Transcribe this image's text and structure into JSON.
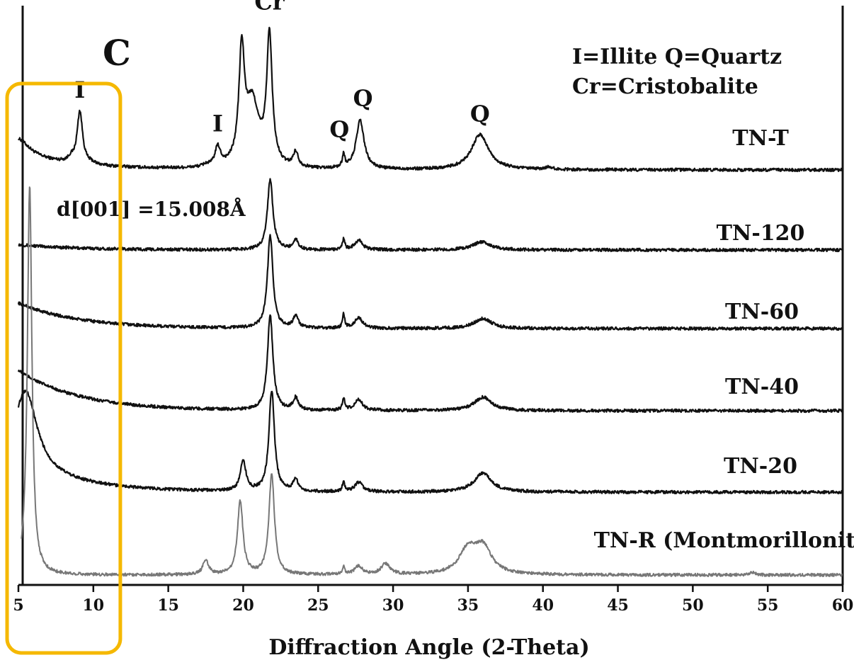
{
  "chart_data": {
    "type": "line",
    "panel_letter": "C",
    "xlabel": "Diffraction Angle (2-Theta)",
    "ylabel": "",
    "xlim": [
      5,
      60
    ],
    "xticks": [
      5,
      10,
      15,
      20,
      25,
      30,
      35,
      40,
      45,
      50,
      55,
      60
    ],
    "grid": false,
    "legend": {
      "line1": "I=Illite Q=Quartz",
      "line2": "Cr=Cristobalite"
    },
    "series": [
      {
        "name": "TN-T",
        "color": "#111111",
        "peaks": [
          [
            5.0,
            0.24
          ],
          [
            8.5,
            0.06
          ],
          [
            9.1,
            0.78
          ],
          [
            9.9,
            0.02
          ],
          [
            17.5,
            0.03
          ],
          [
            18.3,
            0.28
          ],
          [
            19.9,
            1.6
          ],
          [
            20.6,
            0.95
          ],
          [
            21.75,
            1.9
          ],
          [
            23.5,
            0.22
          ],
          [
            26.7,
            0.2
          ],
          [
            27.8,
            0.72
          ],
          [
            35.8,
            0.52
          ],
          [
            40.4,
            0.04
          ]
        ],
        "baseline_start": 0.22
      },
      {
        "name": "TN-120",
        "color": "#111111",
        "peaks": [
          [
            21.8,
            1.05
          ],
          [
            23.5,
            0.15
          ],
          [
            26.7,
            0.16
          ],
          [
            27.7,
            0.14
          ],
          [
            35.9,
            0.12
          ]
        ],
        "baseline_start": 0.08
      },
      {
        "name": "TN-60",
        "color": "#111111",
        "peaks": [
          [
            21.8,
            1.38
          ],
          [
            23.5,
            0.18
          ],
          [
            26.7,
            0.2
          ],
          [
            27.7,
            0.16
          ],
          [
            36.0,
            0.15
          ]
        ],
        "baseline_start": 0.38
      },
      {
        "name": "TN-40",
        "color": "#111111",
        "peaks": [
          [
            21.8,
            1.4
          ],
          [
            23.5,
            0.18
          ],
          [
            26.7,
            0.18
          ],
          [
            27.7,
            0.16
          ],
          [
            36.0,
            0.2
          ]
        ],
        "baseline_start": 0.6
      },
      {
        "name": "TN-20",
        "color": "#111111",
        "peaks": [
          [
            5.5,
            1.15
          ],
          [
            20.0,
            0.45
          ],
          [
            21.9,
            1.5
          ],
          [
            23.5,
            0.18
          ],
          [
            26.7,
            0.15
          ],
          [
            27.7,
            0.14
          ],
          [
            36.0,
            0.28
          ]
        ],
        "baseline_start": 0.4
      },
      {
        "name": "TN-R (Montmorillonite)",
        "color": "#777777",
        "peaks": [
          [
            5.75,
            5.8
          ],
          [
            17.5,
            0.22
          ],
          [
            19.8,
            1.1
          ],
          [
            21.9,
            1.5
          ],
          [
            26.7,
            0.12
          ],
          [
            27.7,
            0.12
          ],
          [
            29.5,
            0.16
          ],
          [
            35.0,
            0.35
          ],
          [
            36.0,
            0.38
          ],
          [
            54.0,
            0.04
          ]
        ],
        "baseline_start": 0.0
      }
    ],
    "annotations": [
      {
        "text": "I",
        "x": 9.1,
        "series": "TN-T"
      },
      {
        "text": "I",
        "x": 18.3,
        "series": "TN-T"
      },
      {
        "text": "Cr",
        "x": 21.75,
        "series": "TN-T"
      },
      {
        "text": "Q",
        "x": 26.7,
        "series": "TN-T"
      },
      {
        "text": "Q",
        "x": 27.8,
        "series": "TN-T"
      },
      {
        "text": "Q",
        "x": 35.8,
        "series": "TN-T"
      },
      {
        "text": "d[001] =15.008Å",
        "x": 5.75,
        "series": "TN-R (Montmorillonite)"
      }
    ],
    "highlight_region": {
      "x_range": [
        5,
        11.8
      ],
      "color": "#F5B800"
    }
  }
}
